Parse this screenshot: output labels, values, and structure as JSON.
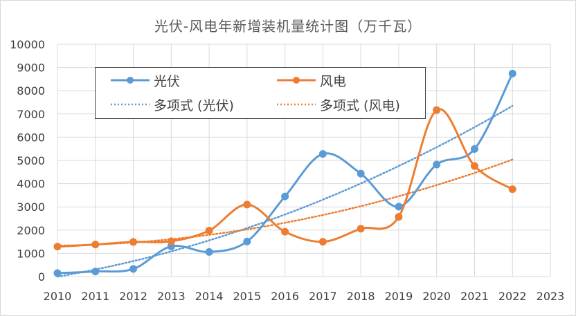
{
  "chart_data": {
    "type": "line",
    "title": "光伏-风电年新增装机量统计图（万千瓦）",
    "x_ticks": [
      "2010",
      "2011",
      "2012",
      "2013",
      "2014",
      "2015",
      "2016",
      "2017",
      "2018",
      "2019",
      "2020",
      "2021",
      "2022",
      "2023"
    ],
    "y_ticks": [
      "0",
      "1000",
      "2000",
      "3000",
      "4000",
      "5000",
      "6000",
      "7000",
      "8000",
      "9000",
      "10000"
    ],
    "xlim": [
      2010,
      2023
    ],
    "ylim": [
      0,
      10000
    ],
    "grid": true,
    "series": [
      {
        "name": "光伏",
        "color": "#5b9bd5",
        "x": [
          2010,
          2011,
          2012,
          2013,
          2014,
          2015,
          2016,
          2017,
          2018,
          2019,
          2020,
          2021,
          2022
        ],
        "values": [
          150,
          220,
          330,
          1300,
          1060,
          1510,
          3450,
          5280,
          4430,
          3010,
          4820,
          5490,
          8740
        ]
      },
      {
        "name": "风电",
        "color": "#ed7d31",
        "x": [
          2010,
          2011,
          2012,
          2013,
          2014,
          2015,
          2016,
          2017,
          2018,
          2019,
          2020,
          2021,
          2022
        ],
        "values": [
          1290,
          1380,
          1490,
          1520,
          1980,
          3100,
          1930,
          1500,
          2060,
          2570,
          7170,
          4760,
          3760
        ]
      }
    ],
    "trendlines": [
      {
        "name": "多项式 (光伏)",
        "color": "#5b9bd5",
        "type": "polynomial",
        "degree": 2,
        "of_series": "光伏"
      },
      {
        "name": "多项式 (风电)",
        "color": "#ed7d31",
        "type": "polynomial",
        "degree": 2,
        "of_series": "风电"
      }
    ],
    "legend_position": "top-left"
  }
}
